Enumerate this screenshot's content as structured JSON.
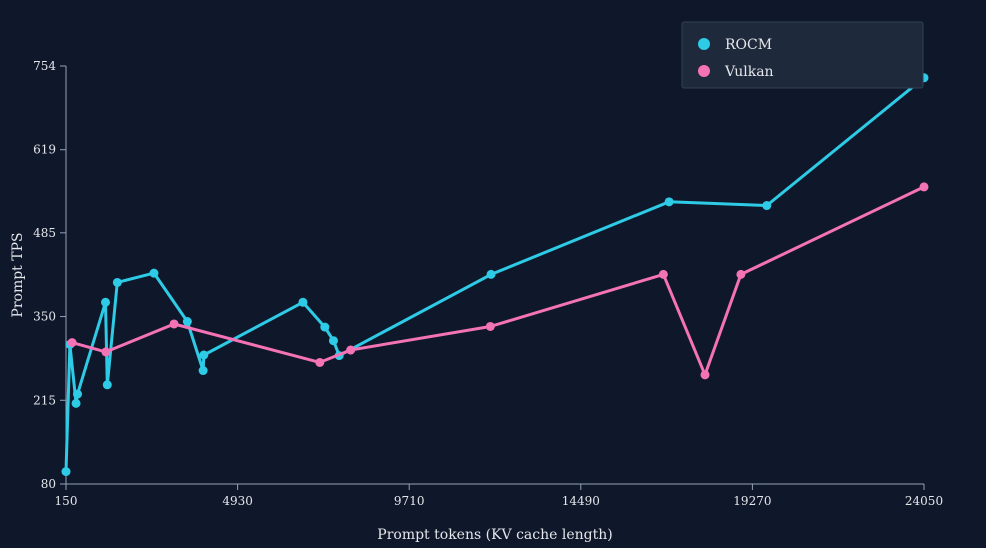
{
  "chart_data": {
    "type": "line",
    "title": "",
    "xlabel": "Prompt tokens (KV cache length)",
    "ylabel": "Prompt TPS",
    "xlim": [
      150,
      24050
    ],
    "ylim": [
      80,
      754
    ],
    "x_ticks": [
      150,
      4930,
      9710,
      14490,
      19270,
      24050
    ],
    "y_ticks": [
      80,
      215,
      350,
      485,
      619,
      754
    ],
    "grid": false,
    "legend_position": "top-right",
    "series": [
      {
        "name": "ROCM",
        "color": "#2ecbe6",
        "points": [
          [
            150,
            100
          ],
          [
            260,
            305
          ],
          [
            430,
            210
          ],
          [
            470,
            225
          ],
          [
            1250,
            373
          ],
          [
            1300,
            240
          ],
          [
            1580,
            405
          ],
          [
            2600,
            420
          ],
          [
            3530,
            342
          ],
          [
            3970,
            263
          ],
          [
            3990,
            288
          ],
          [
            6750,
            373
          ],
          [
            7360,
            333
          ],
          [
            7600,
            311
          ],
          [
            7760,
            287
          ],
          [
            11990,
            418
          ],
          [
            16950,
            535
          ],
          [
            19670,
            529
          ],
          [
            24050,
            735
          ]
        ]
      },
      {
        "name": "Vulkan",
        "color": "#f472b6",
        "points": [
          [
            320,
            308
          ],
          [
            1260,
            293
          ],
          [
            3160,
            338
          ],
          [
            7220,
            276
          ],
          [
            8080,
            296
          ],
          [
            11970,
            334
          ],
          [
            16790,
            418
          ],
          [
            17950,
            256
          ],
          [
            18950,
            418
          ],
          [
            24050,
            559
          ]
        ]
      }
    ]
  }
}
